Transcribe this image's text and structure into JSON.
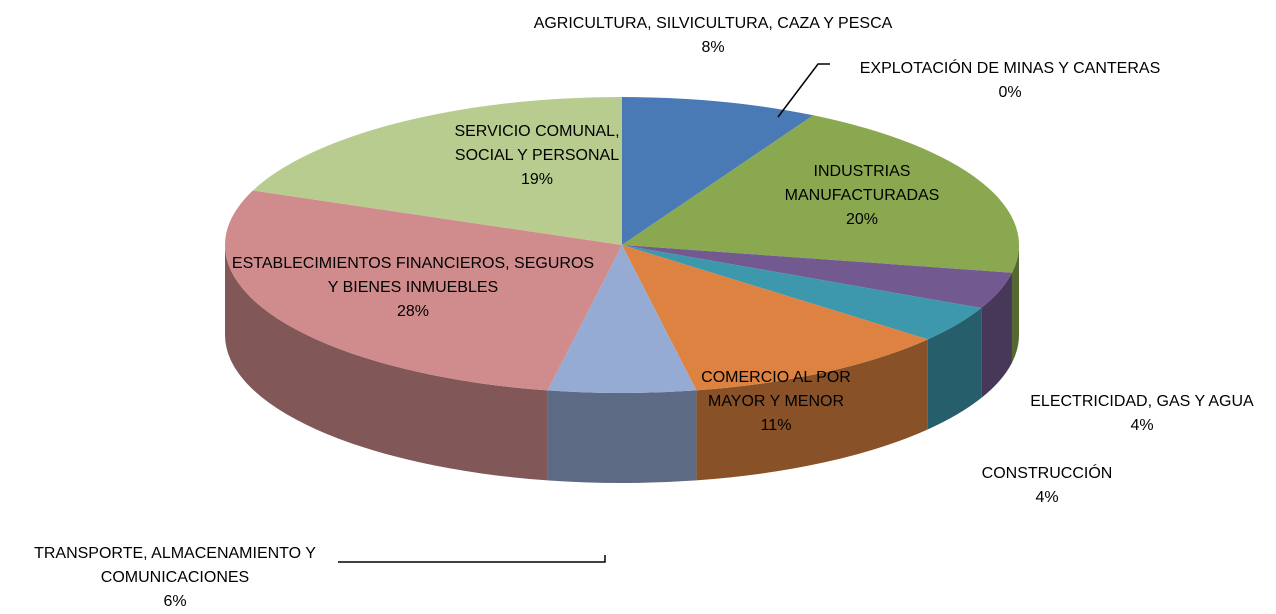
{
  "chart_data": {
    "type": "pie",
    "categories": [
      "AGRICULTURA, SILVICULTURA, CAZA Y PESCA",
      "EXPLOTACIÓN DE MINAS Y CANTERAS",
      "INDUSTRIAS MANUFACTURADAS",
      "ELECTRICIDAD, GAS Y AGUA",
      "CONSTRUCCIÓN",
      "COMERCIO AL POR MAYOR Y MENOR",
      "TRANSPORTE, ALMACENAMIENTO Y COMUNICACIONES",
      "ESTABLECIMIENTOS FINANCIEROS, SEGUROS Y BIENES INMUEBLES",
      "SERVICIO COMUNAL, SOCIAL Y PERSONAL"
    ],
    "values": [
      8,
      0,
      20,
      4,
      4,
      11,
      6,
      28,
      19
    ],
    "value_labels": [
      "8%",
      "0%",
      "20%",
      "4%",
      "4%",
      "11%",
      "6%",
      "28%",
      "19%"
    ],
    "colors": [
      "#4a7ab5",
      "#c0504d",
      "#8aa84f",
      "#72598f",
      "#3d98ad",
      "#dd8240",
      "#95abd3",
      "#d08c8c",
      "#b8cc8f"
    ]
  }
}
